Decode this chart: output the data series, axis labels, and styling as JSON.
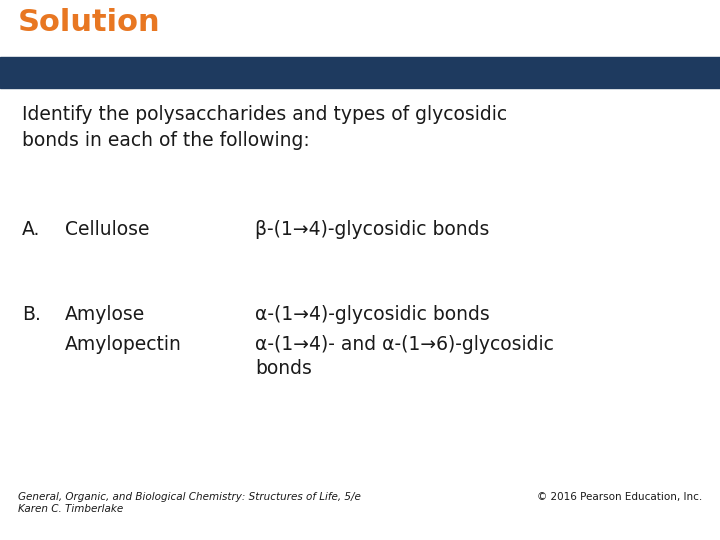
{
  "title": "Solution",
  "title_color": "#E87722",
  "title_fontsize": 22,
  "title_fontweight": "bold",
  "banner_color": "#1E3A5F",
  "bg_color": "#FFFFFF",
  "question_text": "Identify the polysaccharides and types of glycosidic\nbonds in each of the following:",
  "question_fontsize": 13.5,
  "items": [
    {
      "label": "A.",
      "name": "Cellulose",
      "bond_text": "β-(1→4)-glycosidic bonds",
      "row": 0
    },
    {
      "label": "B.",
      "name": "Amylose",
      "bond_text": "α-(1→4)-glycosidic bonds",
      "row": 1
    },
    {
      "label": "",
      "name": "Amylopectin",
      "bond_text": "α-(1→4)- and α-(1→6)-glycosidic\nbonds",
      "row": 2
    }
  ],
  "footer_left": "General, Organic, and Biological Chemistry: Structures of Life, 5/e\nKaren C. Timberlake",
  "footer_right": "© 2016 Pearson Education, Inc.",
  "footer_fontsize": 7.5,
  "text_color": "#1A1A1A",
  "item_fontsize": 13.5
}
